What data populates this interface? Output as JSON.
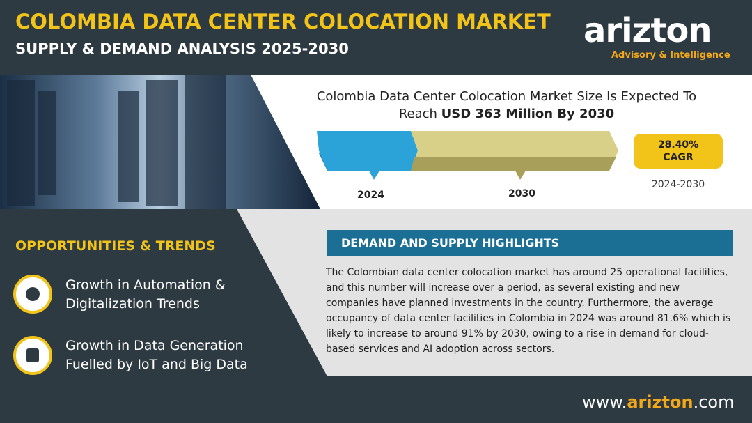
{
  "header": {
    "title": "COLOMBIA DATA CENTER COLOCATION MARKET",
    "subtitle": "SUPPLY & DEMAND ANALYSIS 2025-2030",
    "logo": "arizton",
    "tagline": "Advisory & Intelligence"
  },
  "forecast": {
    "headline": "Colombia Data Center Colocation Market Size Is Expected To Reach",
    "headline_bold": "USD 363 Million By 2030",
    "start_year": "2024",
    "end_year": "2030",
    "cagr_value": "28.40%",
    "cagr_label": "CAGR",
    "cagr_period": "2024-2030"
  },
  "opportunities": {
    "title": "OPPORTUNITIES & TRENDS",
    "items": [
      "Growth in Automation & Digitalization Trends",
      "Growth in Data Generation Fuelled by IoT and Big Data"
    ]
  },
  "highlights": {
    "title": "DEMAND AND SUPPLY HIGHLIGHTS",
    "body": "The Colombian data center colocation market has around 25 operational facilities, and this number will increase over a period, as several existing and new companies have planned investments in the country. Furthermore, the average occupancy of data center facilities in Colombia in 2024 was around 81.6% which is likely to increase to around 91% by 2030, owing to a rise in demand for cloud-based services and AI adoption across sectors."
  },
  "footer": {
    "prefix": "www.",
    "brand": "arizton",
    "suffix": ".com"
  }
}
